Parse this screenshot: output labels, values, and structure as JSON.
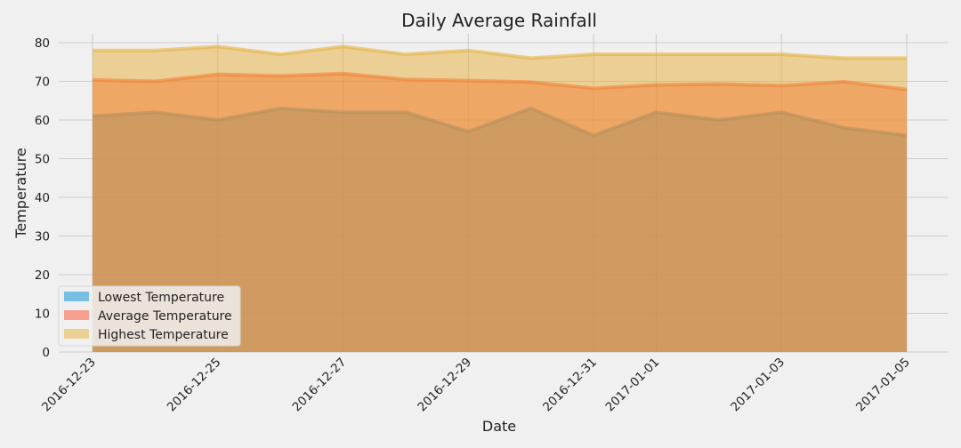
{
  "chart_data": {
    "type": "area",
    "title": "Daily Average Rainfall",
    "xlabel": "Date",
    "ylabel": "Temperature",
    "ylim": [
      0,
      80
    ],
    "yticks": [
      0,
      10,
      20,
      30,
      40,
      50,
      60,
      70,
      80
    ],
    "x": [
      "2016-12-23",
      "2016-12-24",
      "2016-12-25",
      "2016-12-26",
      "2016-12-27",
      "2016-12-28",
      "2016-12-29",
      "2016-12-30",
      "2016-12-31",
      "2017-01-01",
      "2017-01-02",
      "2017-01-03",
      "2017-01-04",
      "2017-01-05"
    ],
    "xtick_labels": [
      "2016-12-23",
      "2016-12-25",
      "2016-12-27",
      "2016-12-29",
      "2016-12-31",
      "2017-01-01",
      "2017-01-03",
      "2017-01-05"
    ],
    "grid": true,
    "legend_position": "lower-left",
    "series": [
      {
        "name": "Lowest Temperature",
        "color": "#008fd5",
        "values": [
          61,
          62,
          60,
          63,
          62,
          62,
          57,
          63,
          56,
          62,
          60,
          62,
          58,
          56
        ]
      },
      {
        "name": "Average Temperature",
        "color": "#fc4f30",
        "values": [
          70.4,
          70.0,
          71.8,
          71.4,
          72.0,
          70.5,
          70.2,
          69.8,
          68.2,
          69.1,
          69.3,
          68.9,
          69.9,
          67.9
        ]
      },
      {
        "name": "Highest Temperature",
        "color": "#e5ae38",
        "values": [
          78,
          78,
          79,
          77,
          79,
          77,
          78,
          76,
          77,
          77,
          77,
          77,
          76,
          76
        ]
      }
    ]
  }
}
